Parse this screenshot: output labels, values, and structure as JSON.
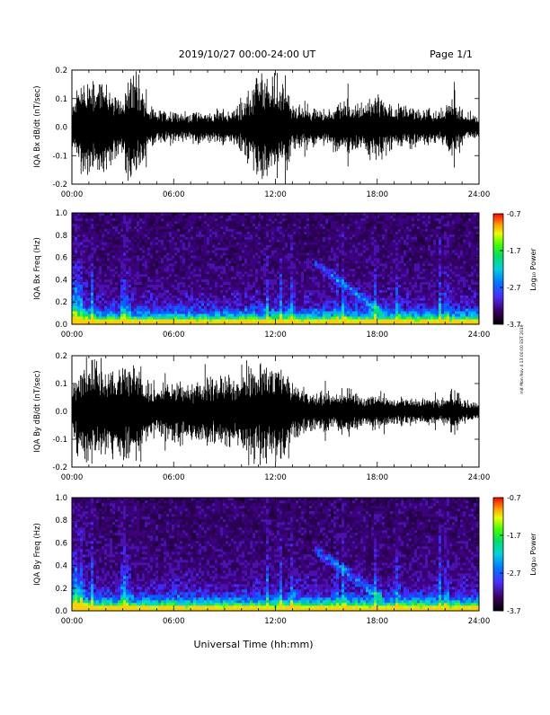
{
  "header": {
    "title": "2019/10/27  00:00-24:00 UT",
    "page": "Page 1/1"
  },
  "side_note": "mit Mon Nov 4 13:00:00 EST 2019",
  "xlabel": "Universal Time (hh:mm)",
  "x_ticks": [
    "00:00",
    "06:00",
    "12:00",
    "18:00",
    "24:00"
  ],
  "colors": {
    "trace": "#000000",
    "background": "#ffffff"
  },
  "chart_data": [
    {
      "type": "line",
      "ylabel": "IQA Bx dB/dt (nT/sec)",
      "ylim": [
        -0.2,
        0.2
      ],
      "yticks": [
        "0.2",
        "0.1",
        "0.0",
        "-0.1",
        "-0.2"
      ],
      "xlim": [
        0,
        24
      ],
      "x": [
        0,
        0.5,
        1,
        1.5,
        2,
        2.5,
        3,
        3.5,
        4,
        4.5,
        5,
        5.5,
        6,
        6.5,
        7,
        7.5,
        8,
        8.5,
        9,
        9.5,
        10,
        10.5,
        11,
        11.5,
        12,
        12.5,
        13,
        13.5,
        14,
        14.5,
        15,
        15.5,
        16,
        16.5,
        17,
        17.5,
        18,
        18.5,
        19,
        19.5,
        20,
        20.5,
        21,
        21.5,
        22,
        22.5,
        23,
        23.5,
        24
      ],
      "amplitude": [
        0.08,
        0.2,
        0.2,
        0.2,
        0.2,
        0.12,
        0.15,
        0.2,
        0.18,
        0.08,
        0.07,
        0.06,
        0.08,
        0.06,
        0.06,
        0.07,
        0.06,
        0.07,
        0.07,
        0.07,
        0.1,
        0.14,
        0.2,
        0.2,
        0.2,
        0.2,
        0.1,
        0.08,
        0.09,
        0.08,
        0.07,
        0.1,
        0.12,
        0.1,
        0.1,
        0.12,
        0.13,
        0.11,
        0.09,
        0.08,
        0.09,
        0.07,
        0.08,
        0.06,
        0.08,
        0.15,
        0.07,
        0.05,
        0.04
      ]
    },
    {
      "type": "heatmap",
      "ylabel": "IQA Bx Freq (Hz)",
      "ylim": [
        0.0,
        1.0
      ],
      "yticks": [
        "1.0",
        "0.8",
        "0.6",
        "0.4",
        "0.2",
        "0.0"
      ],
      "xlim": [
        0,
        24
      ],
      "colorbar": {
        "label": "Log₁₀ Power",
        "ticks": [
          "-0.7",
          "-1.7",
          "-2.7",
          "-3.7"
        ],
        "range": [
          -3.7,
          -0.7
        ]
      }
    },
    {
      "type": "line",
      "ylabel": "IQA By dB/dt (nT/sec)",
      "ylim": [
        -0.2,
        0.2
      ],
      "yticks": [
        "0.2",
        "0.1",
        "0.0",
        "-0.1",
        "-0.2"
      ],
      "xlim": [
        0,
        24
      ],
      "x": [
        0,
        0.5,
        1,
        1.5,
        2,
        2.5,
        3,
        3.5,
        4,
        4.5,
        5,
        5.5,
        6,
        6.5,
        7,
        7.5,
        8,
        8.5,
        9,
        9.5,
        10,
        10.5,
        11,
        11.5,
        12,
        12.5,
        13,
        13.5,
        14,
        14.5,
        15,
        15.5,
        16,
        16.5,
        17,
        17.5,
        18,
        18.5,
        19,
        19.5,
        20,
        20.5,
        21,
        21.5,
        22,
        22.5,
        23,
        23.5,
        24
      ],
      "amplitude": [
        0.1,
        0.2,
        0.2,
        0.2,
        0.2,
        0.2,
        0.2,
        0.2,
        0.2,
        0.12,
        0.12,
        0.12,
        0.12,
        0.14,
        0.12,
        0.14,
        0.13,
        0.14,
        0.15,
        0.15,
        0.18,
        0.2,
        0.2,
        0.2,
        0.2,
        0.2,
        0.12,
        0.1,
        0.09,
        0.09,
        0.09,
        0.08,
        0.09,
        0.1,
        0.07,
        0.06,
        0.08,
        0.06,
        0.05,
        0.06,
        0.06,
        0.05,
        0.06,
        0.05,
        0.06,
        0.1,
        0.05,
        0.04,
        0.03
      ]
    },
    {
      "type": "heatmap",
      "ylabel": "IQA By Freq (Hz)",
      "ylim": [
        0.0,
        1.0
      ],
      "yticks": [
        "1.0",
        "0.8",
        "0.6",
        "0.4",
        "0.2",
        "0.0"
      ],
      "xlim": [
        0,
        24
      ],
      "colorbar": {
        "label": "Log₁₀ Power",
        "ticks": [
          "-0.7",
          "-1.7",
          "-2.7",
          "-3.7"
        ],
        "range": [
          -3.7,
          -0.7
        ]
      }
    }
  ]
}
